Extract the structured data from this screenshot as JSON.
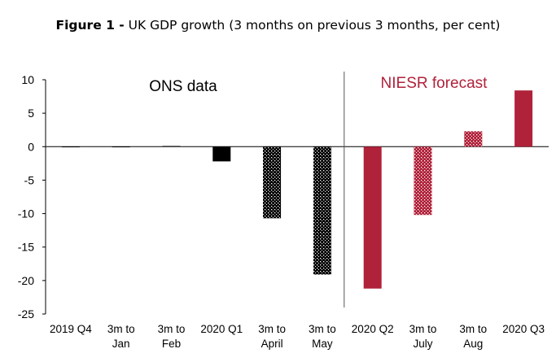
{
  "figure_label": "Figure 1 -",
  "title": "UK GDP growth (3 months on previous 3 months, per cent)",
  "colors": {
    "ons": "#000000",
    "niesr": "#b0223a",
    "divider": "#555555"
  },
  "chart_data": {
    "type": "bar",
    "categories": [
      [
        "2019 Q4"
      ],
      [
        "3m to",
        "Jan"
      ],
      [
        "3m to",
        "Feb"
      ],
      [
        "2020 Q1"
      ],
      [
        "3m to",
        "April"
      ],
      [
        "3m to",
        "May"
      ],
      [
        "2020 Q2"
      ],
      [
        "3m to",
        "July"
      ],
      [
        "3m to",
        "Aug"
      ],
      [
        "2020 Q3"
      ]
    ],
    "values": [
      0.0,
      0.0,
      0.1,
      -2.2,
      -10.7,
      -19.1,
      -21.2,
      -10.2,
      2.3,
      8.4
    ],
    "styles": [
      "solid",
      "solid",
      "solid",
      "solid",
      "dotted",
      "dotted",
      "solid",
      "dotted",
      "dotted",
      "solid"
    ],
    "groups": [
      "ons",
      "ons",
      "ons",
      "ons",
      "ons",
      "ons",
      "niesr",
      "niesr",
      "niesr",
      "niesr"
    ],
    "ylim": [
      -25,
      10
    ],
    "yticks": [
      10,
      5,
      0,
      -5,
      -10,
      -15,
      -20,
      -25
    ],
    "annotations": {
      "ons": "ONS data",
      "niesr": "NIESR forecast"
    },
    "divider_between": [
      5,
      6
    ],
    "grid": false
  }
}
